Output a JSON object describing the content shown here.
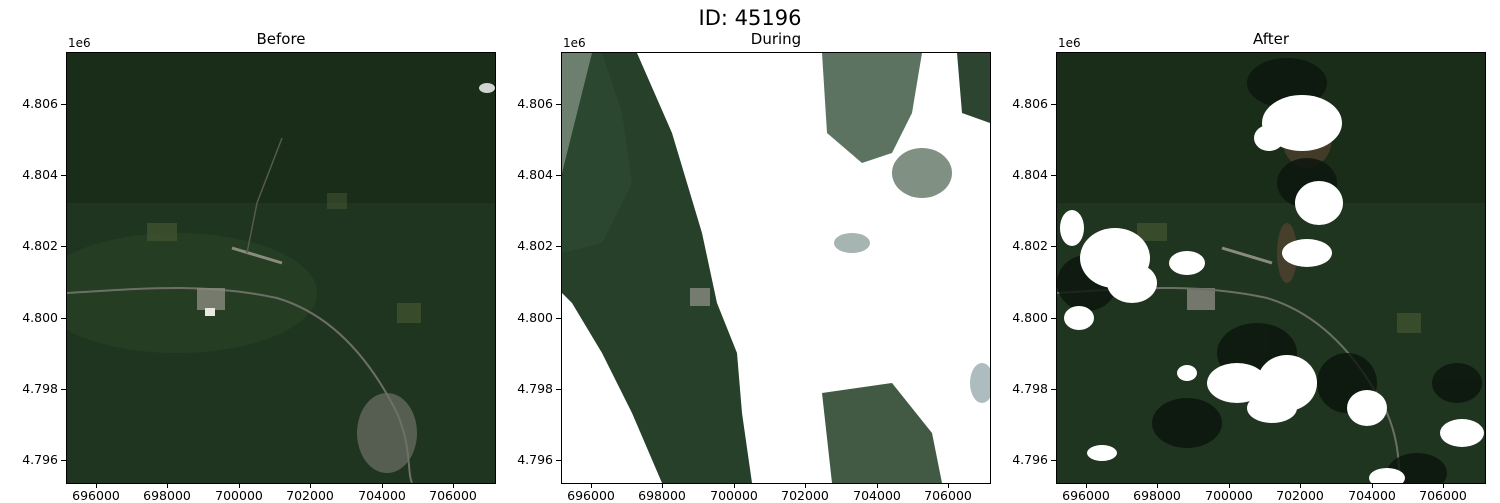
{
  "figure": {
    "title": "ID: 45196"
  },
  "panels": [
    {
      "title": "Before",
      "scene": "clear"
    },
    {
      "title": "During",
      "scene": "heavy-cloud"
    },
    {
      "title": "After",
      "scene": "scattered-cloud"
    }
  ],
  "axes": {
    "y_exponent_label": "1e6",
    "y_ticks": [
      "4.806",
      "4.804",
      "4.802",
      "4.800",
      "4.798",
      "4.796"
    ],
    "x_ticks": [
      "696000",
      "698000",
      "700000",
      "702000",
      "704000",
      "706000"
    ]
  },
  "colors": {
    "forest": "#1f3520",
    "forest_dark": "#142414",
    "field": "#4a5a33",
    "urban": "#8a8a80",
    "cloud": "#ffffff",
    "cloud_shadow": "#0b140c"
  }
}
